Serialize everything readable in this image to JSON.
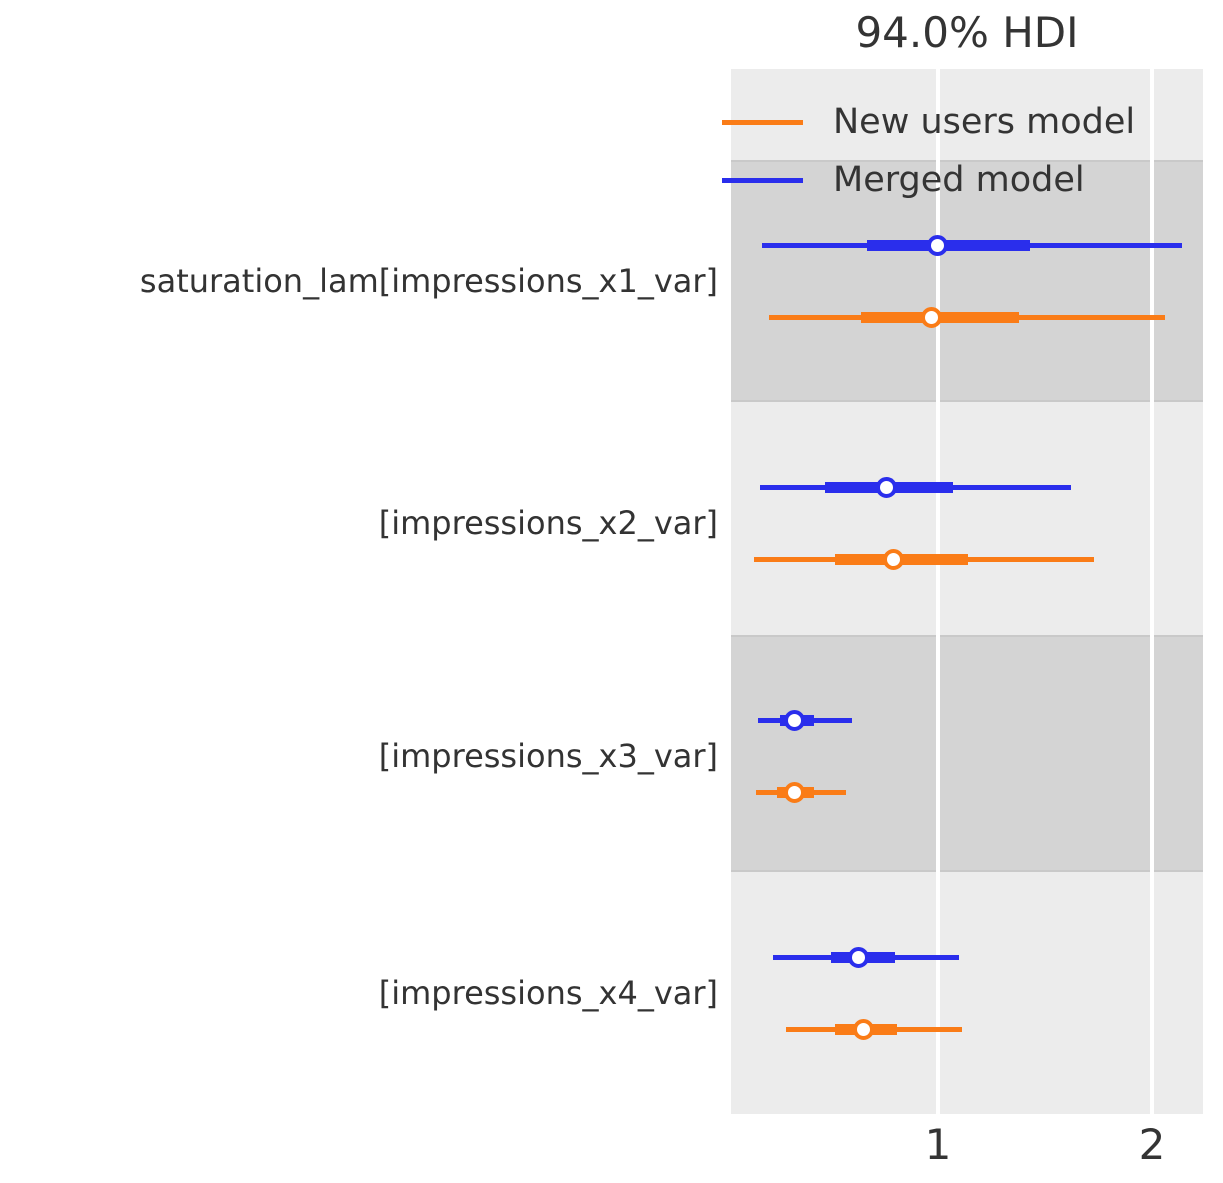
{
  "chart_data": {
    "type": "forest",
    "title": "94.0% HDI",
    "hdi_probability": "94.0%",
    "legend": [
      {
        "name": "New users model",
        "color": "#fa7c17"
      },
      {
        "name": "Merged model",
        "color": "#2a2eec"
      }
    ],
    "x_axis": {
      "ticks": [
        "1",
        "2"
      ],
      "tick_values": [
        1,
        2
      ],
      "lim": [
        0.033,
        2.238
      ],
      "gridlines": true,
      "gridline_color": "#ffffff"
    },
    "layout_hints": {
      "band_light_color": "#ececec",
      "band_dark_color": "#d4d4d4",
      "legend_position": "upper left inside plot",
      "marker": "white circle with colored edge"
    },
    "parameters": [
      {
        "label": "saturation_lam[impressions_x1_var]",
        "series": [
          {
            "model": "Merged model",
            "color": "#2a2eec",
            "hdi_94": [
              0.18,
              2.14
            ],
            "iqr": [
              0.67,
              1.43
            ],
            "point": 1.0
          },
          {
            "model": "New users model",
            "color": "#fa7c17",
            "hdi_94": [
              0.21,
              2.06
            ],
            "iqr": [
              0.64,
              1.38
            ],
            "point": 0.97
          }
        ]
      },
      {
        "label": "[impressions_x2_var]",
        "series": [
          {
            "model": "Merged model",
            "color": "#2a2eec",
            "hdi_94": [
              0.17,
              1.62
            ],
            "iqr": [
              0.47,
              1.07
            ],
            "point": 0.76
          },
          {
            "model": "New users model",
            "color": "#fa7c17",
            "hdi_94": [
              0.14,
              1.73
            ],
            "iqr": [
              0.52,
              1.14
            ],
            "point": 0.79
          }
        ]
      },
      {
        "label": "[impressions_x3_var]",
        "series": [
          {
            "model": "Merged model",
            "color": "#2a2eec",
            "hdi_94": [
              0.16,
              0.6
            ],
            "iqr": [
              0.26,
              0.42
            ],
            "point": 0.33
          },
          {
            "model": "New users model",
            "color": "#fa7c17",
            "hdi_94": [
              0.15,
              0.57
            ],
            "iqr": [
              0.25,
              0.42
            ],
            "point": 0.33
          }
        ]
      },
      {
        "label": "[impressions_x4_var]",
        "series": [
          {
            "model": "Merged model",
            "color": "#2a2eec",
            "hdi_94": [
              0.23,
              1.1
            ],
            "iqr": [
              0.5,
              0.8
            ],
            "point": 0.63
          },
          {
            "model": "New users model",
            "color": "#fa7c17",
            "hdi_94": [
              0.29,
              1.11
            ],
            "iqr": [
              0.52,
              0.81
            ],
            "point": 0.65
          }
        ]
      }
    ]
  }
}
